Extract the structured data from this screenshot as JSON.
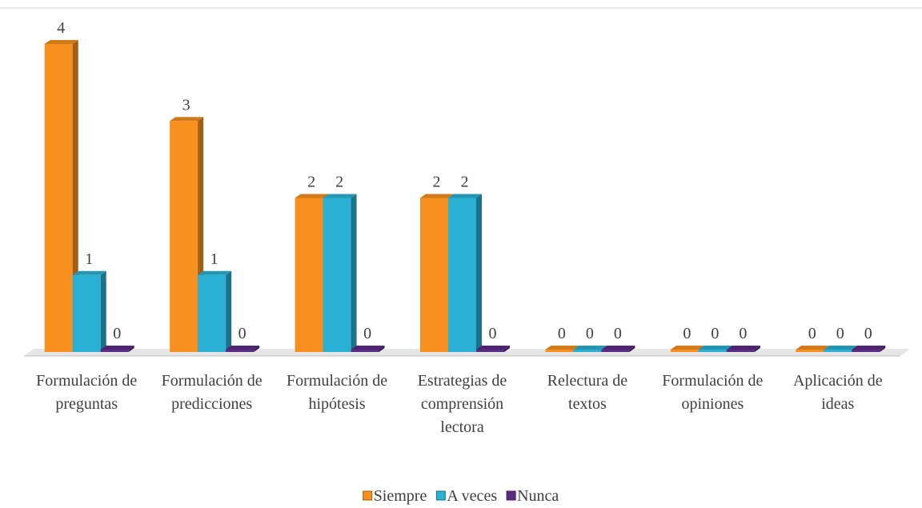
{
  "chart_data": {
    "type": "bar3d",
    "categories": [
      "Formulación de preguntas",
      "Formulación de predicciones",
      "Formulación de hipótesis",
      "Estrategias de comprensión lectora",
      "Relectura de textos",
      "Formulación de opiniones",
      "Aplicación de ideas"
    ],
    "series": [
      {
        "name": "Siempre",
        "color": "#f7901e",
        "values": [
          4,
          3,
          2,
          2,
          0,
          0,
          0
        ]
      },
      {
        "name": "A veces",
        "color": "#2ab0d3",
        "values": [
          1,
          1,
          2,
          2,
          0,
          0,
          0
        ]
      },
      {
        "name": "Nunca",
        "color": "#5b2c83",
        "values": [
          0,
          0,
          0,
          0,
          0,
          0,
          0
        ]
      }
    ],
    "legend": "bottom"
  }
}
